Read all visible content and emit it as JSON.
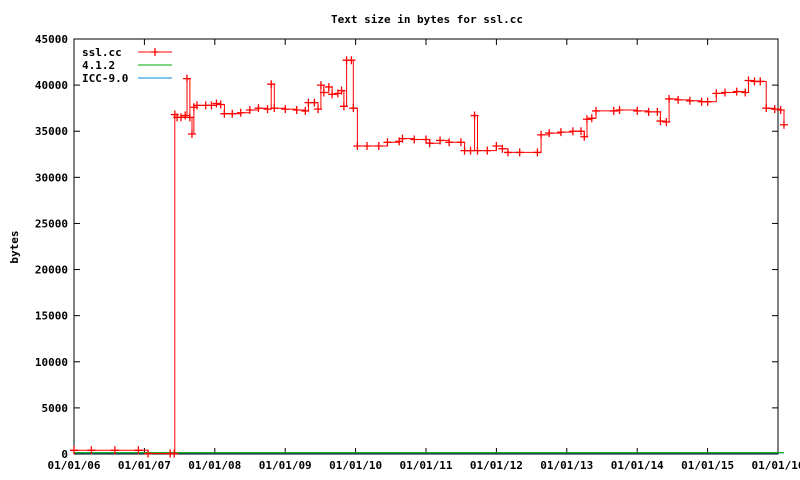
{
  "chart_data": {
    "type": "line",
    "title": "Text size in bytes for ssl.cc",
    "xlabel": "",
    "ylabel": "bytes",
    "x_axis": {
      "type": "date",
      "range": [
        "2006-01-01",
        "2016-01-01"
      ],
      "tick_labels": [
        "01/01/06",
        "01/01/07",
        "01/01/08",
        "01/01/09",
        "01/01/10",
        "01/01/11",
        "01/01/12",
        "01/01/13",
        "01/01/14",
        "01/01/15",
        "01/01/16"
      ]
    },
    "y_axis": {
      "range": [
        0,
        45000
      ],
      "tick_labels": [
        "0",
        "5000",
        "10000",
        "15000",
        "20000",
        "25000",
        "30000",
        "35000",
        "40000",
        "45000"
      ]
    },
    "grid": false,
    "legend_position": "top-left",
    "series": [
      {
        "name": "ssl.cc",
        "color": "#ff0000",
        "marker": "plus",
        "points": [
          [
            "2006-01-01",
            400
          ],
          [
            "2006-04-01",
            400
          ],
          [
            "2006-08-01",
            400
          ],
          [
            "2006-12-01",
            400
          ],
          [
            "2007-01-20",
            50
          ],
          [
            "2007-05-15",
            50
          ],
          [
            "2007-06-05",
            50
          ],
          [
            "2007-06-08",
            36800
          ],
          [
            "2007-06-20",
            36500
          ],
          [
            "2007-07-10",
            36500
          ],
          [
            "2007-08-01",
            36700
          ],
          [
            "2007-08-10",
            40700
          ],
          [
            "2007-08-25",
            36500
          ],
          [
            "2007-09-05",
            34700
          ],
          [
            "2007-09-15",
            37600
          ],
          [
            "2007-10-01",
            37800
          ],
          [
            "2007-11-15",
            37800
          ],
          [
            "2007-12-15",
            37800
          ],
          [
            "2008-01-10",
            38000
          ],
          [
            "2008-02-01",
            37900
          ],
          [
            "2008-02-20",
            36900
          ],
          [
            "2008-04-01",
            36900
          ],
          [
            "2008-05-15",
            37000
          ],
          [
            "2008-07-01",
            37300
          ],
          [
            "2008-08-15",
            37500
          ],
          [
            "2008-10-01",
            37400
          ],
          [
            "2008-10-20",
            40100
          ],
          [
            "2008-11-05",
            37500
          ],
          [
            "2009-01-01",
            37400
          ],
          [
            "2009-03-01",
            37300
          ],
          [
            "2009-04-15",
            37200
          ],
          [
            "2009-05-01",
            38100
          ],
          [
            "2009-06-01",
            38100
          ],
          [
            "2009-06-20",
            37400
          ],
          [
            "2009-07-05",
            40000
          ],
          [
            "2009-07-20",
            39200
          ],
          [
            "2009-08-15",
            39800
          ],
          [
            "2009-09-01",
            39000
          ],
          [
            "2009-10-01",
            39100
          ],
          [
            "2009-10-20",
            39400
          ],
          [
            "2009-11-01",
            37700
          ],
          [
            "2009-11-15",
            42700
          ],
          [
            "2009-12-10",
            42700
          ],
          [
            "2009-12-20",
            37500
          ],
          [
            "2010-01-10",
            33400
          ],
          [
            "2010-03-01",
            33400
          ],
          [
            "2010-05-01",
            33400
          ],
          [
            "2010-06-15",
            33800
          ],
          [
            "2010-08-15",
            33900
          ],
          [
            "2010-09-01",
            34200
          ],
          [
            "2010-11-01",
            34100
          ],
          [
            "2011-01-01",
            34100
          ],
          [
            "2011-01-20",
            33700
          ],
          [
            "2011-03-15",
            34000
          ],
          [
            "2011-05-01",
            33800
          ],
          [
            "2011-07-01",
            33800
          ],
          [
            "2011-07-20",
            32900
          ],
          [
            "2011-08-20",
            32900
          ],
          [
            "2011-09-10",
            36700
          ],
          [
            "2011-09-25",
            32900
          ],
          [
            "2011-11-15",
            32900
          ],
          [
            "2012-01-01",
            33400
          ],
          [
            "2012-02-01",
            33100
          ],
          [
            "2012-03-01",
            32700
          ],
          [
            "2012-05-01",
            32700
          ],
          [
            "2012-08-01",
            32700
          ],
          [
            "2012-08-20",
            34600
          ],
          [
            "2012-10-01",
            34800
          ],
          [
            "2012-12-01",
            34900
          ],
          [
            "2013-02-01",
            35000
          ],
          [
            "2013-03-15",
            35000
          ],
          [
            "2013-04-01",
            34400
          ],
          [
            "2013-04-15",
            36300
          ],
          [
            "2013-05-10",
            36400
          ],
          [
            "2013-06-01",
            37200
          ],
          [
            "2013-09-01",
            37200
          ],
          [
            "2013-10-01",
            37300
          ],
          [
            "2014-01-01",
            37200
          ],
          [
            "2014-03-01",
            37100
          ],
          [
            "2014-04-15",
            37100
          ],
          [
            "2014-05-01",
            36100
          ],
          [
            "2014-06-01",
            36000
          ],
          [
            "2014-06-15",
            38500
          ],
          [
            "2014-08-01",
            38400
          ],
          [
            "2014-10-01",
            38300
          ],
          [
            "2014-12-01",
            38200
          ],
          [
            "2015-01-01",
            38200
          ],
          [
            "2015-02-15",
            39100
          ],
          [
            "2015-04-01",
            39200
          ],
          [
            "2015-06-01",
            39300
          ],
          [
            "2015-07-15",
            39200
          ],
          [
            "2015-08-01",
            40500
          ],
          [
            "2015-09-01",
            40400
          ],
          [
            "2015-10-01",
            40400
          ],
          [
            "2015-11-01",
            37500
          ],
          [
            "2015-12-15",
            37400
          ],
          [
            "2016-01-15",
            37300
          ],
          [
            "2016-02-01",
            35700
          ]
        ]
      },
      {
        "name": "4.1.2",
        "color": "#00aa00",
        "marker": "none",
        "points": [
          [
            "2006-01-01",
            150
          ],
          [
            "2016-02-01",
            150
          ]
        ]
      },
      {
        "name": "ICC-9.0",
        "color": "#0088dd",
        "marker": "none",
        "points": [
          [
            "2006-01-01",
            120
          ],
          [
            "2016-02-01",
            120
          ]
        ]
      }
    ]
  }
}
